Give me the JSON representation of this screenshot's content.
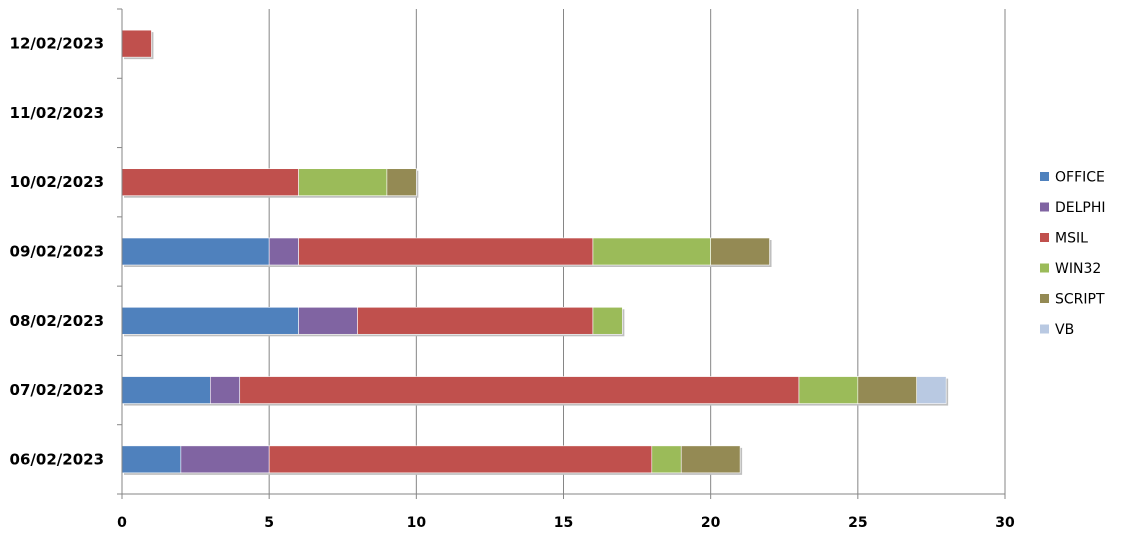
{
  "chart_data": {
    "type": "bar",
    "orientation": "horizontal",
    "stacked": true,
    "categories": [
      "06/02/2023",
      "07/02/2023",
      "08/02/2023",
      "09/02/2023",
      "10/02/2023",
      "11/02/2023",
      "12/02/2023"
    ],
    "series": [
      {
        "name": "OFFICE",
        "color": "#4F81BD",
        "values": [
          2,
          3,
          6,
          5,
          0,
          0,
          0
        ]
      },
      {
        "name": "DELPHI",
        "color": "#8064A2",
        "values": [
          3,
          1,
          2,
          1,
          0,
          0,
          0
        ]
      },
      {
        "name": "MSIL",
        "color": "#C0504D",
        "values": [
          13,
          19,
          8,
          10,
          6,
          0,
          1
        ]
      },
      {
        "name": "WIN32",
        "color": "#9BBB59",
        "values": [
          1,
          2,
          1,
          4,
          3,
          0,
          0
        ]
      },
      {
        "name": "SCRIPT",
        "color": "#948A54",
        "values": [
          2,
          2,
          0,
          2,
          1,
          0,
          0
        ]
      },
      {
        "name": "VB",
        "color": "#B9C9E2",
        "values": [
          0,
          1,
          0,
          0,
          0,
          0,
          0
        ]
      }
    ],
    "xlim": [
      0,
      30
    ],
    "xticks": [
      "0",
      "5",
      "10",
      "15",
      "20",
      "25",
      "30"
    ],
    "grid": "vertical",
    "legend_position": "right",
    "title": "",
    "xlabel": "",
    "ylabel": ""
  }
}
